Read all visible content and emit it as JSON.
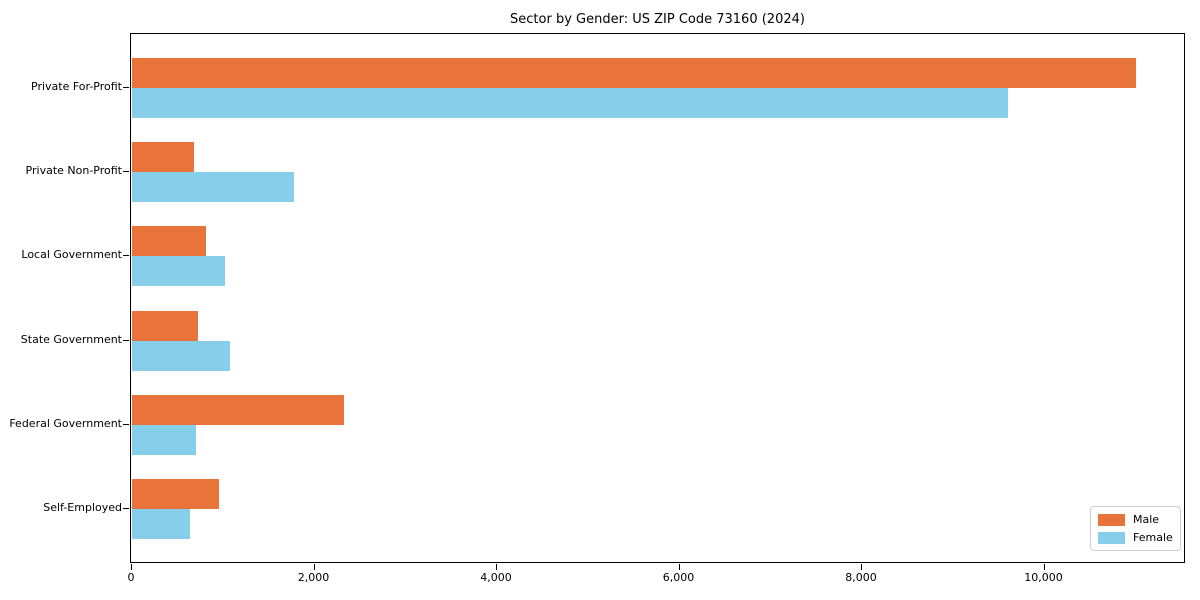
{
  "chart_data": {
    "type": "bar",
    "orientation": "horizontal",
    "title": "Sector by Gender: US ZIP Code 73160 (2024)",
    "categories": [
      "Private For-Profit",
      "Private Non-Profit",
      "Local Government",
      "State Government",
      "Federal Government",
      "Self-Employed"
    ],
    "series": [
      {
        "name": "Male",
        "color": "#E8743B",
        "values": [
          11000,
          680,
          810,
          720,
          2320,
          950
        ]
      },
      {
        "name": "Female",
        "color": "#87CEEB",
        "values": [
          9600,
          1780,
          1020,
          1070,
          700,
          640
        ]
      }
    ],
    "xlabel": "",
    "ylabel": "",
    "xlim": [
      0,
      11550
    ],
    "xticks": [
      0,
      2000,
      4000,
      6000,
      8000,
      10000
    ],
    "xtick_labels": [
      "0",
      "2,000",
      "4,000",
      "6,000",
      "8,000",
      "10,000"
    ],
    "grid": false,
    "legend_position": "lower right",
    "background_color": "#ffffff",
    "axis_color": "#000000"
  }
}
